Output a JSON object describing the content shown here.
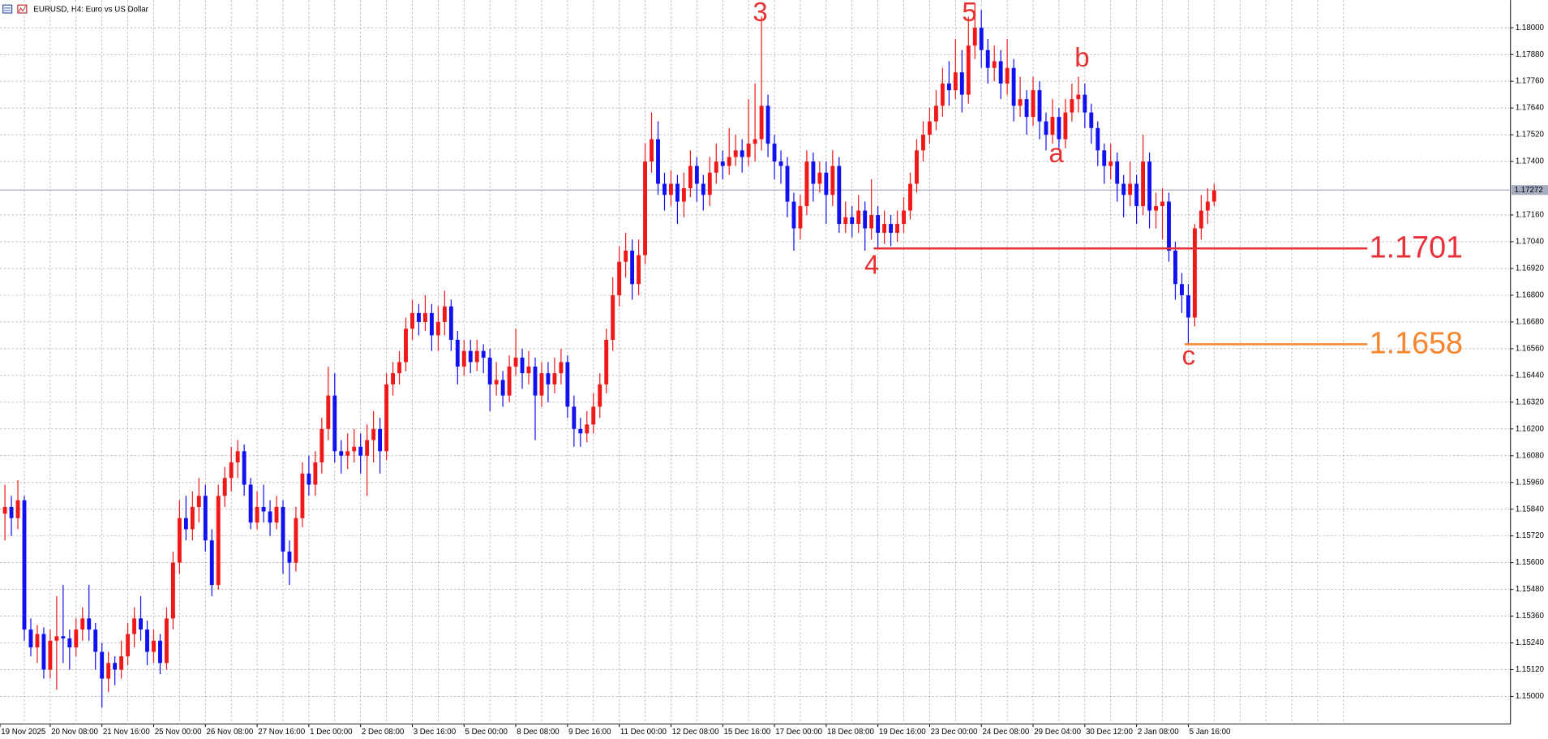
{
  "chart_data": {
    "type": "candlestick",
    "title": "EURUSD, H4:  Euro vs US Dollar",
    "up_color": "#f01818",
    "down_color": "#1010f0",
    "grid": true,
    "ylim": [
      1.14876,
      1.18124
    ],
    "yticks": [
      {
        "value": 1.18,
        "label": "1.18000"
      },
      {
        "value": 1.1788,
        "label": "1.17880"
      },
      {
        "value": 1.1776,
        "label": "1.17760"
      },
      {
        "value": 1.1764,
        "label": "1.17640"
      },
      {
        "value": 1.1752,
        "label": "1.17520"
      },
      {
        "value": 1.174,
        "label": "1.17400"
      },
      {
        "value": 1.1716,
        "label": "1.17160"
      },
      {
        "value": 1.1704,
        "label": "1.17040"
      },
      {
        "value": 1.1692,
        "label": "1.16920"
      },
      {
        "value": 1.168,
        "label": "1.16800"
      },
      {
        "value": 1.1668,
        "label": "1.16680"
      },
      {
        "value": 1.1656,
        "label": "1.16560"
      },
      {
        "value": 1.1644,
        "label": "1.16440"
      },
      {
        "value": 1.1632,
        "label": "1.16320"
      },
      {
        "value": 1.162,
        "label": "1.16200"
      },
      {
        "value": 1.1608,
        "label": "1.16080"
      },
      {
        "value": 1.1596,
        "label": "1.15960"
      },
      {
        "value": 1.1584,
        "label": "1.15840"
      },
      {
        "value": 1.1572,
        "label": "1.15720"
      },
      {
        "value": 1.156,
        "label": "1.15600"
      },
      {
        "value": 1.1548,
        "label": "1.15480"
      },
      {
        "value": 1.1536,
        "label": "1.15360"
      },
      {
        "value": 1.1524,
        "label": "1.15240"
      },
      {
        "value": 1.1512,
        "label": "1.15120"
      },
      {
        "value": 1.15,
        "label": "1.15000"
      }
    ],
    "current_price": 1.17272,
    "current_price_color": "#a4aec0",
    "wave_labels": [
      "3",
      "5",
      "4",
      "a",
      "b",
      "c"
    ],
    "wave_color": "#e83030",
    "levels": [
      {
        "value": 1.1701,
        "color": "#e8303a"
      },
      {
        "value": 1.1658,
        "color": "#f5862f"
      }
    ],
    "categories": [
      "19 Nov 2025",
      null,
      null,
      null,
      null,
      null,
      null,
      "20 Nov 08:00",
      null,
      null,
      null,
      null,
      null,
      null,
      null,
      "21 Nov 16:00",
      null,
      null,
      null,
      null,
      null,
      null,
      null,
      "25 Nov 00:00",
      null,
      null,
      null,
      null,
      null,
      null,
      null,
      "26 Nov 08:00",
      null,
      null,
      null,
      null,
      null,
      null,
      null,
      "27 Nov 16:00",
      null,
      null,
      null,
      null,
      null,
      null,
      null,
      "1 Dec 00:00",
      null,
      null,
      null,
      null,
      null,
      null,
      null,
      "2 Dec 08:00",
      null,
      null,
      null,
      null,
      null,
      null,
      null,
      "3 Dec 16:00",
      null,
      null,
      null,
      null,
      null,
      null,
      null,
      "5 Dec 00:00",
      null,
      null,
      null,
      null,
      null,
      null,
      null,
      "8 Dec 08:00",
      null,
      null,
      null,
      null,
      null,
      null,
      null,
      "9 Dec 16:00",
      null,
      null,
      null,
      null,
      null,
      null,
      null,
      "11 Dec 00:00",
      null,
      null,
      null,
      null,
      null,
      null,
      null,
      "12 Dec 08:00",
      null,
      null,
      null,
      null,
      null,
      null,
      null,
      "15 Dec 16:00",
      null,
      null,
      null,
      null,
      null,
      null,
      null,
      "17 Dec 00:00",
      null,
      null,
      null,
      null,
      null,
      null,
      null,
      "18 Dec 08:00",
      null,
      null,
      null,
      null,
      null,
      null,
      null,
      "19 Dec 16:00",
      null,
      null,
      null,
      null,
      null,
      null,
      null,
      "23 Dec 00:00",
      null,
      null,
      null,
      null,
      null,
      null,
      null,
      "24 Dec 08:00",
      null,
      null,
      null,
      null,
      null,
      null,
      null,
      "29 Dec 04:00",
      null,
      null,
      null,
      null,
      null,
      null,
      null,
      "30 Dec 12:00",
      null,
      null,
      null,
      null,
      null,
      null,
      null,
      "2 Jan 08:00",
      null,
      null,
      null,
      null,
      null,
      null,
      null,
      "5 Jan 16:00",
      null,
      null,
      null,
      null
    ],
    "ohlc": [
      [
        1.1582,
        1.1595,
        1.157,
        1.1585
      ],
      [
        1.1585,
        1.159,
        1.1572,
        1.158
      ],
      [
        1.158,
        1.1597,
        1.1575,
        1.1588
      ],
      [
        1.1588,
        1.159,
        1.1525,
        1.153
      ],
      [
        1.153,
        1.1535,
        1.1518,
        1.1522
      ],
      [
        1.1522,
        1.1532,
        1.1515,
        1.1528
      ],
      [
        1.1528,
        1.1531,
        1.1508,
        1.1512
      ],
      [
        1.1512,
        1.153,
        1.1508,
        1.1525
      ],
      [
        1.1525,
        1.1545,
        1.1503,
        1.1527
      ],
      [
        1.1527,
        1.155,
        1.1515,
        1.1526
      ],
      [
        1.1526,
        1.153,
        1.1512,
        1.1522
      ],
      [
        1.1522,
        1.1535,
        1.1518,
        1.153
      ],
      [
        1.153,
        1.154,
        1.1525,
        1.1535
      ],
      [
        1.1535,
        1.155,
        1.1525,
        1.153
      ],
      [
        1.153,
        1.1533,
        1.1512,
        1.152
      ],
      [
        1.152,
        1.1524,
        1.1495,
        1.1508
      ],
      [
        1.1508,
        1.152,
        1.1502,
        1.1515
      ],
      [
        1.1515,
        1.1518,
        1.1505,
        1.1512
      ],
      [
        1.1512,
        1.1525,
        1.1508,
        1.1518
      ],
      [
        1.1518,
        1.1533,
        1.1514,
        1.1528
      ],
      [
        1.1528,
        1.154,
        1.1522,
        1.1535
      ],
      [
        1.1535,
        1.1545,
        1.1525,
        1.153
      ],
      [
        1.153,
        1.1534,
        1.1514,
        1.152
      ],
      [
        1.152,
        1.153,
        1.1515,
        1.1525
      ],
      [
        1.1525,
        1.1528,
        1.151,
        1.1515
      ],
      [
        1.1515,
        1.154,
        1.1512,
        1.1535
      ],
      [
        1.1535,
        1.1565,
        1.153,
        1.156
      ],
      [
        1.156,
        1.1588,
        1.1555,
        1.158
      ],
      [
        1.158,
        1.159,
        1.157,
        1.1575
      ],
      [
        1.1575,
        1.1592,
        1.157,
        1.1585
      ],
      [
        1.1585,
        1.1598,
        1.1578,
        1.159
      ],
      [
        1.159,
        1.1595,
        1.1565,
        1.157
      ],
      [
        1.157,
        1.1575,
        1.1545,
        1.155
      ],
      [
        1.155,
        1.1595,
        1.1548,
        1.159
      ],
      [
        1.159,
        1.1603,
        1.1585,
        1.1598
      ],
      [
        1.1598,
        1.1612,
        1.1592,
        1.1605
      ],
      [
        1.1605,
        1.1615,
        1.1598,
        1.161
      ],
      [
        1.161,
        1.1613,
        1.159,
        1.1595
      ],
      [
        1.1595,
        1.1598,
        1.1575,
        1.1578
      ],
      [
        1.1578,
        1.1592,
        1.1575,
        1.1585
      ],
      [
        1.1585,
        1.1595,
        1.1578,
        1.1583
      ],
      [
        1.1583,
        1.1588,
        1.1572,
        1.1578
      ],
      [
        1.1578,
        1.159,
        1.1575,
        1.1585
      ],
      [
        1.1585,
        1.1588,
        1.1555,
        1.1565
      ],
      [
        1.1565,
        1.157,
        1.155,
        1.156
      ],
      [
        1.156,
        1.1585,
        1.1556,
        1.158
      ],
      [
        1.158,
        1.1605,
        1.1576,
        1.16
      ],
      [
        1.16,
        1.1608,
        1.159,
        1.1595
      ],
      [
        1.1595,
        1.161,
        1.159,
        1.1605
      ],
      [
        1.1605,
        1.1625,
        1.16,
        1.162
      ],
      [
        1.162,
        1.1648,
        1.1615,
        1.1635
      ],
      [
        1.1635,
        1.1645,
        1.1605,
        1.161
      ],
      [
        1.161,
        1.1615,
        1.16,
        1.1608
      ],
      [
        1.1608,
        1.1618,
        1.1602,
        1.161
      ],
      [
        1.161,
        1.162,
        1.1605,
        1.1612
      ],
      [
        1.1612,
        1.1618,
        1.16,
        1.1608
      ],
      [
        1.1608,
        1.1622,
        1.159,
        1.1615
      ],
      [
        1.1615,
        1.1628,
        1.1605,
        1.162
      ],
      [
        1.162,
        1.1625,
        1.16,
        1.161
      ],
      [
        1.161,
        1.1645,
        1.1606,
        1.164
      ],
      [
        1.164,
        1.165,
        1.1635,
        1.1645
      ],
      [
        1.1645,
        1.1655,
        1.164,
        1.165
      ],
      [
        1.165,
        1.167,
        1.1646,
        1.1665
      ],
      [
        1.1665,
        1.1678,
        1.166,
        1.1672
      ],
      [
        1.1672,
        1.1676,
        1.1662,
        1.1668
      ],
      [
        1.1668,
        1.168,
        1.1664,
        1.1672
      ],
      [
        1.1672,
        1.1676,
        1.1655,
        1.1662
      ],
      [
        1.1662,
        1.1675,
        1.1655,
        1.1668
      ],
      [
        1.1668,
        1.1682,
        1.1662,
        1.1675
      ],
      [
        1.1675,
        1.1678,
        1.1655,
        1.166
      ],
      [
        1.166,
        1.1664,
        1.164,
        1.1648
      ],
      [
        1.1648,
        1.166,
        1.1644,
        1.1655
      ],
      [
        1.1655,
        1.166,
        1.1645,
        1.165
      ],
      [
        1.165,
        1.166,
        1.1646,
        1.1655
      ],
      [
        1.1655,
        1.1658,
        1.1645,
        1.1652
      ],
      [
        1.1652,
        1.1656,
        1.1628,
        1.164
      ],
      [
        1.164,
        1.165,
        1.1635,
        1.1642
      ],
      [
        1.1642,
        1.1646,
        1.163,
        1.1635
      ],
      [
        1.1635,
        1.1653,
        1.1632,
        1.1648
      ],
      [
        1.1648,
        1.1665,
        1.1644,
        1.1652
      ],
      [
        1.1652,
        1.1656,
        1.1638,
        1.1645
      ],
      [
        1.1645,
        1.1655,
        1.164,
        1.1648
      ],
      [
        1.1648,
        1.1652,
        1.1615,
        1.1635
      ],
      [
        1.1635,
        1.165,
        1.163,
        1.1645
      ],
      [
        1.1645,
        1.165,
        1.1632,
        1.164
      ],
      [
        1.164,
        1.1652,
        1.1636,
        1.1645
      ],
      [
        1.1645,
        1.1656,
        1.164,
        1.165
      ],
      [
        1.165,
        1.1653,
        1.1625,
        1.163
      ],
      [
        1.163,
        1.1635,
        1.1612,
        1.162
      ],
      [
        1.162,
        1.1625,
        1.1612,
        1.1618
      ],
      [
        1.1618,
        1.1628,
        1.1614,
        1.1622
      ],
      [
        1.1622,
        1.1636,
        1.1618,
        1.163
      ],
      [
        1.163,
        1.1645,
        1.1625,
        1.164
      ],
      [
        1.164,
        1.1665,
        1.1636,
        1.166
      ],
      [
        1.166,
        1.1688,
        1.1655,
        1.168
      ],
      [
        1.168,
        1.1702,
        1.1675,
        1.1695
      ],
      [
        1.1695,
        1.1708,
        1.1688,
        1.17
      ],
      [
        1.17,
        1.1705,
        1.1678,
        1.1685
      ],
      [
        1.1685,
        1.1705,
        1.168,
        1.1698
      ],
      [
        1.1698,
        1.1748,
        1.1694,
        1.174
      ],
      [
        1.174,
        1.1762,
        1.1735,
        1.175
      ],
      [
        1.175,
        1.1758,
        1.1725,
        1.173
      ],
      [
        1.173,
        1.1735,
        1.1718,
        1.1725
      ],
      [
        1.1725,
        1.1736,
        1.172,
        1.173
      ],
      [
        1.173,
        1.1734,
        1.1712,
        1.1722
      ],
      [
        1.1722,
        1.1735,
        1.1715,
        1.1728
      ],
      [
        1.1728,
        1.1745,
        1.1724,
        1.1738
      ],
      [
        1.1738,
        1.1742,
        1.1722,
        1.173
      ],
      [
        1.173,
        1.1734,
        1.1718,
        1.1725
      ],
      [
        1.1725,
        1.1742,
        1.172,
        1.1735
      ],
      [
        1.1735,
        1.1748,
        1.173,
        1.174
      ],
      [
        1.174,
        1.1745,
        1.1732,
        1.1738
      ],
      [
        1.1738,
        1.1755,
        1.1734,
        1.1742
      ],
      [
        1.1742,
        1.1752,
        1.1738,
        1.1745
      ],
      [
        1.1745,
        1.175,
        1.1735,
        1.1742
      ],
      [
        1.1742,
        1.1768,
        1.1738,
        1.1748
      ],
      [
        1.1748,
        1.1775,
        1.174,
        1.175
      ],
      [
        1.175,
        1.1805,
        1.1745,
        1.1765
      ],
      [
        1.1765,
        1.177,
        1.1742,
        1.1748
      ],
      [
        1.1748,
        1.1752,
        1.1732,
        1.174
      ],
      [
        1.174,
        1.1745,
        1.173,
        1.1738
      ],
      [
        1.1738,
        1.1742,
        1.1715,
        1.1722
      ],
      [
        1.1722,
        1.1726,
        1.17,
        1.171
      ],
      [
        1.171,
        1.1725,
        1.1705,
        1.172
      ],
      [
        1.172,
        1.1745,
        1.1716,
        1.174
      ],
      [
        1.174,
        1.1744,
        1.1722,
        1.173
      ],
      [
        1.173,
        1.174,
        1.1726,
        1.1735
      ],
      [
        1.1735,
        1.174,
        1.1712,
        1.1725
      ],
      [
        1.1725,
        1.1745,
        1.172,
        1.1738
      ],
      [
        1.1738,
        1.1742,
        1.1708,
        1.1712
      ],
      [
        1.1712,
        1.1722,
        1.1708,
        1.1715
      ],
      [
        1.1715,
        1.172,
        1.1706,
        1.1712
      ],
      [
        1.1712,
        1.1725,
        1.1708,
        1.1718
      ],
      [
        1.1718,
        1.1722,
        1.17,
        1.171
      ],
      [
        1.171,
        1.1732,
        1.1705,
        1.1716
      ],
      [
        1.1716,
        1.172,
        1.1701,
        1.1708
      ],
      [
        1.1708,
        1.1718,
        1.1703,
        1.1712
      ],
      [
        1.1712,
        1.1716,
        1.1702,
        1.1708
      ],
      [
        1.1708,
        1.1718,
        1.1704,
        1.1712
      ],
      [
        1.1712,
        1.1724,
        1.1708,
        1.1718
      ],
      [
        1.1718,
        1.1735,
        1.1714,
        1.173
      ],
      [
        1.173,
        1.175,
        1.1726,
        1.1745
      ],
      [
        1.1745,
        1.1758,
        1.174,
        1.1752
      ],
      [
        1.1752,
        1.1764,
        1.1748,
        1.1758
      ],
      [
        1.1758,
        1.1772,
        1.1754,
        1.1765
      ],
      [
        1.1765,
        1.1782,
        1.176,
        1.1775
      ],
      [
        1.1775,
        1.1785,
        1.1765,
        1.1772
      ],
      [
        1.1772,
        1.1795,
        1.1768,
        1.178
      ],
      [
        1.178,
        1.179,
        1.1762,
        1.177
      ],
      [
        1.177,
        1.1805,
        1.1766,
        1.1792
      ],
      [
        1.1792,
        1.1811,
        1.1786,
        1.18
      ],
      [
        1.18,
        1.1808,
        1.1782,
        1.179
      ],
      [
        1.179,
        1.1795,
        1.1775,
        1.1782
      ],
      [
        1.1782,
        1.1792,
        1.1776,
        1.1785
      ],
      [
        1.1785,
        1.179,
        1.1768,
        1.1775
      ],
      [
        1.1775,
        1.1795,
        1.177,
        1.1782
      ],
      [
        1.1782,
        1.1786,
        1.1758,
        1.1765
      ],
      [
        1.1765,
        1.1778,
        1.176,
        1.1768
      ],
      [
        1.1768,
        1.1772,
        1.1752,
        1.176
      ],
      [
        1.176,
        1.1778,
        1.1756,
        1.1772
      ],
      [
        1.1772,
        1.1776,
        1.175,
        1.1758
      ],
      [
        1.1758,
        1.1762,
        1.1745,
        1.1752
      ],
      [
        1.1752,
        1.1768,
        1.1748,
        1.176
      ],
      [
        1.176,
        1.1764,
        1.1745,
        1.175
      ],
      [
        1.175,
        1.1768,
        1.1746,
        1.1762
      ],
      [
        1.1762,
        1.1775,
        1.1758,
        1.1768
      ],
      [
        1.1768,
        1.1778,
        1.1762,
        1.177
      ],
      [
        1.177,
        1.1775,
        1.1755,
        1.1762
      ],
      [
        1.1762,
        1.1766,
        1.1748,
        1.1755
      ],
      [
        1.1755,
        1.1758,
        1.1738,
        1.1745
      ],
      [
        1.1745,
        1.1748,
        1.173,
        1.1738
      ],
      [
        1.1738,
        1.1748,
        1.1732,
        1.174
      ],
      [
        1.174,
        1.1744,
        1.1722,
        1.173
      ],
      [
        1.173,
        1.1734,
        1.1715,
        1.1725
      ],
      [
        1.1725,
        1.174,
        1.172,
        1.173
      ],
      [
        1.173,
        1.1734,
        1.1712,
        1.172
      ],
      [
        1.172,
        1.1752,
        1.1716,
        1.174
      ],
      [
        1.174,
        1.1744,
        1.171,
        1.1718
      ],
      [
        1.1718,
        1.1726,
        1.171,
        1.172
      ],
      [
        1.172,
        1.1728,
        1.1705,
        1.1722
      ],
      [
        1.1722,
        1.1726,
        1.1695,
        1.17
      ],
      [
        1.17,
        1.1704,
        1.1678,
        1.1685
      ],
      [
        1.1685,
        1.169,
        1.1672,
        1.168
      ],
      [
        1.168,
        1.1685,
        1.1658,
        1.167
      ],
      [
        1.167,
        1.1712,
        1.1666,
        1.171
      ],
      [
        1.171,
        1.1725,
        1.1705,
        1.1718
      ],
      [
        1.1718,
        1.1728,
        1.1712,
        1.1722
      ],
      [
        1.1722,
        1.173,
        1.172,
        1.1727
      ]
    ]
  }
}
